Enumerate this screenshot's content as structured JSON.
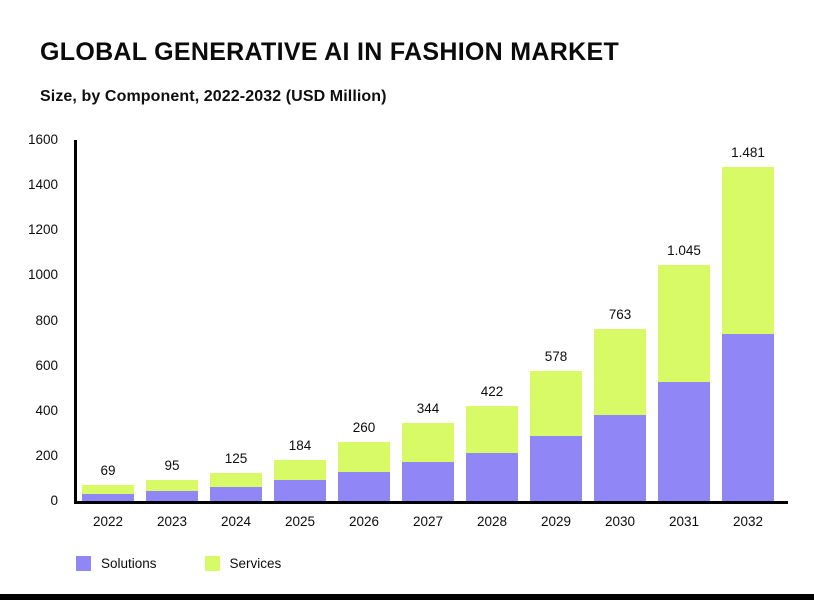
{
  "header": {
    "title": "GLOBAL GENERATIVE AI IN FASHION MARKET",
    "subtitle": "Size, by Component, 2022-2032 (USD Million)"
  },
  "colors": {
    "solutions": "#9186f5",
    "services": "#d7fa66",
    "axis": "#000000",
    "text": "#0d0d0d",
    "background": "#ffffff"
  },
  "legend": {
    "items": [
      {
        "label": "Solutions",
        "color": "#9186f5"
      },
      {
        "label": "Services",
        "color": "#d7fa66"
      }
    ]
  },
  "chart_data": {
    "type": "bar",
    "stacked": true,
    "title": "GLOBAL GENERATIVE AI IN FASHION MARKET",
    "subtitle": "Size, by Component, 2022-2032 (USD Million)",
    "unit": "USD Million",
    "categories": [
      "2022",
      "2023",
      "2024",
      "2025",
      "2026",
      "2027",
      "2028",
      "2029",
      "2030",
      "2031",
      "2032"
    ],
    "series": [
      {
        "name": "Solutions",
        "color": "#9186f5",
        "values": [
          32,
          45,
          61,
          91,
          127,
          172,
          211,
          290,
          382,
          527,
          740
        ]
      },
      {
        "name": "Services",
        "color": "#d7fa66",
        "values": [
          37,
          50,
          64,
          93,
          133,
          172,
          211,
          288,
          381,
          518,
          741
        ]
      }
    ],
    "totals": [
      69,
      95,
      125,
      184,
      260,
      344,
      422,
      578,
      763,
      1045,
      1481
    ],
    "total_labels": [
      "69",
      "95",
      "125",
      "184",
      "260",
      "344",
      "422",
      "578",
      "763",
      "1.045",
      "1.481"
    ],
    "xlabel": "",
    "ylabel": "",
    "ylim": [
      0,
      1600
    ],
    "yticks": [
      0,
      200,
      400,
      600,
      800,
      1000,
      1200,
      1400,
      1600
    ],
    "grid": false,
    "legend_position": "bottom-left"
  }
}
